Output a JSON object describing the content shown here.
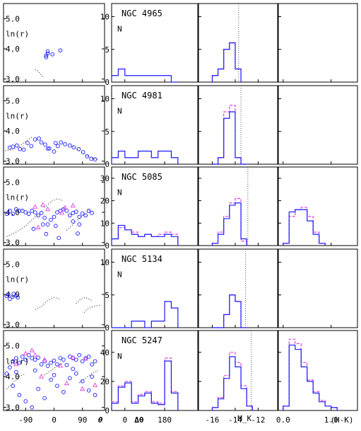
{
  "chart_data": {
    "type": "grid-of-panels",
    "colors": {
      "blue": "#1a1aff",
      "magenta": "#e040e0",
      "dotted": "#333333"
    },
    "column_axes": {
      "theta": {
        "xlabel": "θ",
        "xticks": [
          -90,
          0,
          90
        ],
        "xlim": [
          -160,
          160
        ],
        "ylabel": "ln(r)",
        "yticks": [
          3.0,
          4.0,
          5.0
        ],
        "ytick_labels": [
          "3.0",
          "4.0",
          "5.0"
        ],
        "ylim": [
          2.9,
          5.5
        ]
      },
      "dtheta": {
        "xlabel": "Δθ",
        "xticks": [
          0,
          180
        ],
        "xlim": [
          -60,
          330
        ],
        "ylabel": "N"
      },
      "mk": {
        "xlabel": "M_K",
        "xticks": [
          -16,
          -14,
          -12
        ],
        "xlim": [
          -17.2,
          -10.3
        ],
        "ylabel": "N"
      },
      "hk": {
        "xlabel": "(H-K)",
        "xticks": [
          0.0,
          1.0
        ],
        "xtick_labels": [
          "0.0",
          "1.0"
        ],
        "xlim": [
          -0.1,
          1.55
        ]
      }
    },
    "galaxies": [
      {
        "name": "NGC 4965",
        "ymax": 12,
        "yticks": [
          0,
          5,
          10
        ],
        "mk_line": -13.7,
        "theta_points_blue": [
          [
            -25,
            3.72
          ],
          [
            -25,
            3.78
          ],
          [
            -20,
            3.85
          ],
          [
            -20,
            3.92
          ],
          [
            20,
            3.95
          ],
          [
            -5,
            3.82
          ]
        ],
        "theta_points_magenta": [],
        "theta_curves": [
          [
            [
              -60,
              3.32
            ],
            [
              -50,
              3.26
            ],
            [
              -42,
              3.16
            ],
            [
              -34,
              3.05
            ]
          ]
        ],
        "dtheta_edges": [
          -60,
          -30,
          0,
          30,
          60,
          90,
          120,
          150,
          180,
          210,
          240
        ],
        "dtheta_blue": [
          1,
          2,
          1,
          1,
          1,
          1,
          1,
          1,
          1,
          0
        ],
        "dtheta_magenta": [],
        "mk_edges": [
          -16,
          -15.5,
          -15,
          -14.5,
          -14,
          -13.5
        ],
        "mk_blue": [
          1,
          2,
          5,
          6,
          2
        ],
        "mk_magenta": [
          1,
          2,
          5,
          6,
          2
        ],
        "hk_edges": [],
        "hk_blue": [],
        "hk_magenta": []
      },
      {
        "name": "NGC 4981",
        "ymax": 12,
        "yticks": [
          0,
          5,
          10
        ],
        "mk_line": -13.5,
        "theta_points_blue": [
          [
            -140,
            3.45
          ],
          [
            -130,
            3.48
          ],
          [
            -118,
            3.52
          ],
          [
            -108,
            3.4
          ],
          [
            -96,
            3.38
          ],
          [
            -84,
            3.6
          ],
          [
            -72,
            3.5
          ],
          [
            -60,
            3.72
          ],
          [
            -48,
            3.75
          ],
          [
            -40,
            3.62
          ],
          [
            -28,
            3.55
          ],
          [
            -15,
            3.42
          ],
          [
            0,
            3.32
          ],
          [
            12,
            3.5
          ],
          [
            22,
            3.62
          ],
          [
            35,
            3.56
          ],
          [
            50,
            3.52
          ],
          [
            62,
            3.46
          ],
          [
            78,
            3.4
          ],
          [
            92,
            3.3
          ],
          [
            105,
            3.16
          ],
          [
            118,
            3.08
          ],
          [
            130,
            3.06
          ],
          [
            -20,
            3.42
          ],
          [
            5,
            3.6
          ]
        ],
        "theta_points_magenta": [],
        "theta_curves": [
          [
            [
              -155,
              3.35
            ],
            [
              -130,
              3.38
            ],
            [
              -110,
              3.5
            ],
            [
              -90,
              3.65
            ],
            [
              -70,
              3.8
            ]
          ],
          [
            [
              60,
              3.48
            ],
            [
              80,
              3.35
            ],
            [
              100,
              3.2
            ],
            [
              120,
              3.1
            ],
            [
              140,
              3.05
            ]
          ]
        ],
        "dtheta_edges": [
          -60,
          -30,
          0,
          30,
          60,
          90,
          120,
          150,
          180,
          210,
          240
        ],
        "dtheta_blue": [
          1,
          2,
          1,
          1,
          2,
          2,
          1,
          2,
          2,
          1
        ],
        "dtheta_magenta": [],
        "mk_edges": [
          -16,
          -15.5,
          -15,
          -14.5,
          -14,
          -13.5,
          -13
        ],
        "mk_blue": [
          0,
          1,
          7,
          8,
          1,
          0
        ],
        "mk_magenta": [
          0,
          1,
          8,
          9,
          1,
          0
        ],
        "hk_edges": [],
        "hk_blue": [],
        "hk_magenta": []
      },
      {
        "name": "NGC 5085",
        "ymax": 35,
        "yticks": [
          0,
          10,
          20,
          30
        ],
        "mk_line": -12.9,
        "theta_points_blue": [
          [
            -150,
            3.95
          ],
          [
            -140,
            4.05
          ],
          [
            -130,
            3.95
          ],
          [
            -120,
            4.1
          ],
          [
            -110,
            4.05
          ],
          [
            -100,
            4.05
          ],
          [
            -90,
            4.0
          ],
          [
            -80,
            3.95
          ],
          [
            -70,
            4.05
          ],
          [
            -60,
            4.0
          ],
          [
            -50,
            3.9
          ],
          [
            -40,
            3.98
          ],
          [
            -30,
            3.82
          ],
          [
            -20,
            3.6
          ],
          [
            -10,
            3.75
          ],
          [
            0,
            3.85
          ],
          [
            10,
            4.0
          ],
          [
            20,
            4.05
          ],
          [
            30,
            4.1
          ],
          [
            40,
            4.05
          ],
          [
            50,
            3.9
          ],
          [
            60,
            3.98
          ],
          [
            70,
            4.02
          ],
          [
            80,
            3.85
          ],
          [
            90,
            3.96
          ],
          [
            100,
            3.9
          ],
          [
            110,
            4.05
          ],
          [
            -65,
            3.45
          ],
          [
            -35,
            3.6
          ],
          [
            -25,
            3.28
          ],
          [
            5,
            3.55
          ],
          [
            15,
            3.15
          ],
          [
            60,
            3.7
          ],
          [
            75,
            3.3
          ],
          [
            80,
            3.6
          ],
          [
            120,
            3.98
          ]
        ],
        "theta_points_magenta": [
          [
            -60,
            4.18
          ],
          [
            -35,
            4.25
          ],
          [
            -20,
            4.1
          ],
          [
            35,
            4.15
          ],
          [
            60,
            4.22
          ],
          [
            -50,
            3.5
          ],
          [
            25,
            3.98
          ]
        ],
        "theta_curves": [
          [
            [
              -150,
              3.2
            ],
            [
              -120,
              3.35
            ],
            [
              -90,
              3.55
            ],
            [
              -70,
              3.75
            ],
            [
              -50,
              3.95
            ]
          ],
          [
            [
              -30,
              4.15
            ],
            [
              -10,
              4.35
            ],
            [
              10,
              4.45
            ],
            [
              30,
              4.38
            ]
          ],
          [
            [
              40,
              3.4
            ],
            [
              60,
              3.6
            ],
            [
              80,
              3.8
            ],
            [
              100,
              3.95
            ],
            [
              115,
              4.1
            ]
          ]
        ],
        "dtheta_edges": [
          -60,
          -30,
          0,
          30,
          60,
          90,
          120,
          150,
          180,
          210,
          240
        ],
        "dtheta_blue": [
          3,
          9,
          7,
          5,
          4,
          5,
          4,
          4,
          5,
          4
        ],
        "dtheta_magenta": [
          3,
          8,
          7,
          6,
          4,
          5,
          4,
          5,
          6,
          5
        ],
        "mk_edges": [
          -16,
          -15.5,
          -15,
          -14.5,
          -14,
          -13.5,
          -13
        ],
        "mk_blue": [
          1,
          5,
          12,
          18,
          19,
          3
        ],
        "mk_magenta": [
          1,
          6,
          13,
          19,
          21,
          2
        ],
        "hk_edges": [
          0.0,
          0.125,
          0.25,
          0.375,
          0.5,
          0.625,
          0.75,
          0.875
        ],
        "hk_blue": [
          1,
          15,
          16,
          16,
          11,
          5,
          1
        ],
        "hk_magenta": [
          1,
          13,
          16,
          17,
          13,
          6,
          1
        ]
      },
      {
        "name": "NGC 5134",
        "ymax": 12,
        "yticks": [
          0,
          5,
          10
        ],
        "mk_line": -13.1,
        "theta_points_blue": [
          [
            -150,
            3.95
          ],
          [
            -145,
            4.0
          ],
          [
            -140,
            3.85
          ],
          [
            -132,
            3.92
          ],
          [
            -128,
            4.02
          ],
          [
            -120,
            3.96
          ],
          [
            -115,
            3.9
          ]
        ],
        "theta_points_magenta": [],
        "theta_curves": [
          [
            [
              -60,
              3.5
            ],
            [
              -40,
              3.6
            ],
            [
              -20,
              3.8
            ],
            [
              0,
              3.9
            ],
            [
              20,
              3.85
            ]
          ],
          [
            [
              70,
              3.7
            ],
            [
              85,
              3.85
            ],
            [
              100,
              3.9
            ],
            [
              120,
              3.8
            ]
          ],
          [
            [
              95,
              3.4
            ],
            [
              110,
              3.55
            ],
            [
              130,
              3.62
            ],
            [
              150,
              3.65
            ]
          ]
        ],
        "dtheta_edges": [
          -60,
          -30,
          0,
          30,
          60,
          90,
          120,
          150,
          180,
          210,
          240
        ],
        "dtheta_blue": [
          0,
          0,
          0,
          1,
          1,
          0,
          1,
          1,
          4,
          3
        ],
        "dtheta_magenta": [],
        "mk_edges": [
          -16,
          -15.5,
          -15,
          -14.5,
          -14,
          -13.5,
          -13
        ],
        "mk_blue": [
          0,
          0,
          2,
          5,
          4,
          0
        ],
        "mk_magenta": [
          0,
          0,
          2,
          5,
          4,
          0
        ],
        "hk_edges": [],
        "hk_blue": [],
        "hk_magenta": []
      },
      {
        "name": "NGC 5247",
        "ymax": 55,
        "yticks": [
          0,
          20,
          40
        ],
        "mk_line": -12.6,
        "theta_points_blue": [
          [
            -150,
            4.1
          ],
          [
            -140,
            4.3
          ],
          [
            -130,
            4.5
          ],
          [
            -120,
            4.6
          ],
          [
            -110,
            4.45
          ],
          [
            -100,
            4.65
          ],
          [
            -90,
            4.55
          ],
          [
            -80,
            4.7
          ],
          [
            -70,
            4.6
          ],
          [
            -60,
            4.55
          ],
          [
            -50,
            4.62
          ],
          [
            -40,
            4.4
          ],
          [
            -30,
            4.5
          ],
          [
            -20,
            4.35
          ],
          [
            -10,
            4.45
          ],
          [
            0,
            4.52
          ],
          [
            10,
            4.4
          ],
          [
            20,
            4.6
          ],
          [
            30,
            4.55
          ],
          [
            40,
            4.38
          ],
          [
            50,
            4.65
          ],
          [
            60,
            4.6
          ],
          [
            70,
            4.55
          ],
          [
            80,
            4.7
          ],
          [
            90,
            4.5
          ],
          [
            100,
            4.6
          ],
          [
            110,
            4.65
          ],
          [
            120,
            4.4
          ],
          [
            130,
            4.5
          ],
          [
            -130,
            3.7
          ],
          [
            -110,
            3.4
          ],
          [
            -90,
            3.2
          ],
          [
            -70,
            3.0
          ],
          [
            -50,
            3.6
          ],
          [
            -30,
            3.3
          ],
          [
            -10,
            3.9
          ],
          [
            10,
            3.7
          ],
          [
            30,
            3.5
          ],
          [
            50,
            3.95
          ],
          [
            70,
            4.1
          ],
          [
            90,
            3.85
          ],
          [
            110,
            3.55
          ],
          [
            130,
            3.4
          ],
          [
            -120,
            4.15
          ],
          [
            -60,
            4.2
          ],
          [
            0,
            4.05
          ],
          [
            60,
            4.25
          ],
          [
            120,
            4.0
          ]
        ],
        "theta_points_magenta": [
          [
            -120,
            4.4
          ],
          [
            -90,
            4.75
          ],
          [
            -70,
            4.85
          ],
          [
            -60,
            4.7
          ],
          [
            -30,
            4.55
          ],
          [
            20,
            4.35
          ],
          [
            60,
            4.62
          ],
          [
            100,
            4.58
          ],
          [
            -40,
            4.0
          ],
          [
            40,
            3.78
          ],
          [
            90,
            3.6
          ],
          [
            130,
            3.72
          ]
        ],
        "theta_curves": [
          [
            [
              -150,
              3.6
            ],
            [
              -130,
              3.8
            ],
            [
              -110,
              4.0
            ],
            [
              -90,
              4.1
            ]
          ],
          [
            [
              -30,
              4.05
            ],
            [
              -10,
              4.2
            ],
            [
              10,
              4.35
            ],
            [
              30,
              4.45
            ]
          ],
          [
            [
              80,
              3.8
            ],
            [
              100,
              3.95
            ],
            [
              120,
              4.1
            ],
            [
              140,
              4.2
            ]
          ]
        ],
        "dtheta_edges": [
          -60,
          -30,
          0,
          30,
          60,
          90,
          120,
          150,
          180,
          210,
          240
        ],
        "dtheta_blue": [
          5,
          16,
          19,
          5,
          10,
          12,
          5,
          4,
          34,
          12
        ],
        "dtheta_magenta": [
          6,
          17,
          20,
          6,
          11,
          13,
          6,
          5,
          36,
          13
        ],
        "mk_edges": [
          -16,
          -15.5,
          -15,
          -14.5,
          -14,
          -13.5,
          -13,
          -12.5
        ],
        "mk_blue": [
          2,
          8,
          22,
          37,
          30,
          15,
          3
        ],
        "mk_magenta": [
          2,
          9,
          24,
          40,
          33,
          17,
          3
        ],
        "hk_edges": [
          0.0,
          0.125,
          0.25,
          0.375,
          0.5,
          0.625,
          0.75,
          0.875,
          1.0,
          1.125
        ],
        "hk_blue": [
          3,
          45,
          42,
          30,
          20,
          12,
          6,
          3,
          2
        ],
        "hk_magenta": [
          3,
          49,
          46,
          33,
          21,
          13,
          7,
          3,
          2
        ]
      }
    ]
  }
}
